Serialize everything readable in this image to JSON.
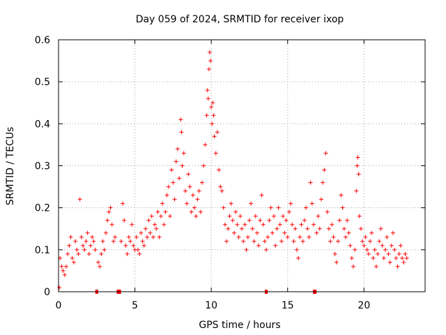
{
  "chart_data": {
    "type": "scatter",
    "title": "Day 059 of 2024, SRMTID for receiver ixop",
    "xlabel": "GPS time / hours",
    "ylabel": "SRMTID / TECUs",
    "xlim": [
      0,
      24
    ],
    "ylim": [
      0,
      0.6
    ],
    "xticks": [
      0,
      5,
      10,
      15,
      20
    ],
    "yticks": [
      0,
      0.1,
      0.2,
      0.3,
      0.4,
      0.5,
      0.6
    ],
    "grid": true,
    "marker": "plus",
    "color": "#ff0000",
    "series": [
      {
        "name": "SRMTID",
        "points": [
          [
            0.05,
            0.01
          ],
          [
            0.1,
            0.08
          ],
          [
            0.2,
            0.06
          ],
          [
            0.3,
            0.05
          ],
          [
            0.4,
            0.04
          ],
          [
            0.5,
            0.06
          ],
          [
            0.6,
            0.09
          ],
          [
            0.7,
            0.11
          ],
          [
            0.8,
            0.13
          ],
          [
            0.9,
            0.08
          ],
          [
            1.0,
            0.07
          ],
          [
            1.1,
            0.12
          ],
          [
            1.2,
            0.1
          ],
          [
            1.3,
            0.09
          ],
          [
            1.4,
            0.22
          ],
          [
            1.5,
            0.13
          ],
          [
            1.6,
            0.11
          ],
          [
            1.7,
            0.1
          ],
          [
            1.8,
            0.12
          ],
          [
            1.9,
            0.14
          ],
          [
            2.0,
            0.09
          ],
          [
            2.1,
            0.11
          ],
          [
            2.2,
            0.13
          ],
          [
            2.3,
            0.12
          ],
          [
            2.4,
            0.1
          ],
          [
            2.6,
            0.07
          ],
          [
            2.7,
            0.06
          ],
          [
            2.8,
            0.09
          ],
          [
            2.9,
            0.12
          ],
          [
            3.0,
            0.1
          ],
          [
            3.1,
            0.14
          ],
          [
            3.2,
            0.17
          ],
          [
            3.3,
            0.19
          ],
          [
            3.4,
            0.2
          ],
          [
            3.5,
            0.16
          ],
          [
            3.6,
            0.12
          ],
          [
            3.7,
            0.13
          ],
          [
            4.1,
            0.12
          ],
          [
            4.2,
            0.21
          ],
          [
            4.3,
            0.17
          ],
          [
            4.4,
            0.11
          ],
          [
            4.5,
            0.09
          ],
          [
            4.6,
            0.13
          ],
          [
            4.7,
            0.12
          ],
          [
            4.8,
            0.16
          ],
          [
            4.9,
            0.11
          ],
          [
            5.0,
            0.1
          ],
          [
            5.1,
            0.13
          ],
          [
            5.2,
            0.1
          ],
          [
            5.3,
            0.09
          ],
          [
            5.4,
            0.14
          ],
          [
            5.5,
            0.12
          ],
          [
            5.6,
            0.11
          ],
          [
            5.7,
            0.15
          ],
          [
            5.8,
            0.13
          ],
          [
            5.9,
            0.17
          ],
          [
            6.0,
            0.14
          ],
          [
            6.1,
            0.18
          ],
          [
            6.2,
            0.13
          ],
          [
            6.3,
            0.16
          ],
          [
            6.4,
            0.15
          ],
          [
            6.5,
            0.19
          ],
          [
            6.6,
            0.13
          ],
          [
            6.7,
            0.18
          ],
          [
            6.8,
            0.21
          ],
          [
            6.9,
            0.16
          ],
          [
            7.0,
            0.19
          ],
          [
            7.1,
            0.23
          ],
          [
            7.2,
            0.25
          ],
          [
            7.3,
            0.18
          ],
          [
            7.4,
            0.29
          ],
          [
            7.5,
            0.26
          ],
          [
            7.6,
            0.22
          ],
          [
            7.7,
            0.31
          ],
          [
            7.8,
            0.34
          ],
          [
            7.9,
            0.27
          ],
          [
            8.0,
            0.41
          ],
          [
            8.05,
            0.38
          ],
          [
            8.1,
            0.3
          ],
          [
            8.2,
            0.33
          ],
          [
            8.3,
            0.24
          ],
          [
            8.4,
            0.21
          ],
          [
            8.5,
            0.28
          ],
          [
            8.6,
            0.25
          ],
          [
            8.7,
            0.19
          ],
          [
            8.8,
            0.23
          ],
          [
            8.9,
            0.2
          ],
          [
            9.0,
            0.18
          ],
          [
            9.1,
            0.22
          ],
          [
            9.2,
            0.24
          ],
          [
            9.3,
            0.19
          ],
          [
            9.4,
            0.26
          ],
          [
            9.5,
            0.3
          ],
          [
            9.6,
            0.35
          ],
          [
            9.7,
            0.42
          ],
          [
            9.75,
            0.48
          ],
          [
            9.8,
            0.46
          ],
          [
            9.85,
            0.53
          ],
          [
            9.9,
            0.57
          ],
          [
            9.95,
            0.55
          ],
          [
            10.0,
            0.44
          ],
          [
            10.05,
            0.4
          ],
          [
            10.1,
            0.45
          ],
          [
            10.15,
            0.42
          ],
          [
            10.2,
            0.37
          ],
          [
            10.3,
            0.33
          ],
          [
            10.4,
            0.38
          ],
          [
            10.5,
            0.29
          ],
          [
            10.6,
            0.25
          ],
          [
            10.7,
            0.24
          ],
          [
            10.8,
            0.2
          ],
          [
            10.9,
            0.16
          ],
          [
            11.0,
            0.12
          ],
          [
            11.1,
            0.15
          ],
          [
            11.2,
            0.18
          ],
          [
            11.3,
            0.21
          ],
          [
            11.4,
            0.17
          ],
          [
            11.5,
            0.14
          ],
          [
            11.6,
            0.19
          ],
          [
            11.7,
            0.16
          ],
          [
            11.8,
            0.13
          ],
          [
            11.9,
            0.18
          ],
          [
            12.0,
            0.15
          ],
          [
            12.1,
            0.12
          ],
          [
            12.2,
            0.16
          ],
          [
            12.3,
            0.1
          ],
          [
            12.4,
            0.13
          ],
          [
            12.5,
            0.17
          ],
          [
            12.6,
            0.21
          ],
          [
            12.7,
            0.15
          ],
          [
            12.8,
            0.12
          ],
          [
            12.9,
            0.18
          ],
          [
            13.0,
            0.14
          ],
          [
            13.1,
            0.11
          ],
          [
            13.2,
            0.17
          ],
          [
            13.3,
            0.23
          ],
          [
            13.4,
            0.16
          ],
          [
            13.5,
            0.12
          ],
          [
            13.6,
            0.1
          ],
          [
            13.7,
            0.13
          ],
          [
            13.8,
            0.17
          ],
          [
            13.9,
            0.2
          ],
          [
            14.0,
            0.14
          ],
          [
            14.1,
            0.18
          ],
          [
            14.2,
            0.11
          ],
          [
            14.3,
            0.15
          ],
          [
            14.4,
            0.2
          ],
          [
            14.5,
            0.16
          ],
          [
            14.6,
            0.12
          ],
          [
            14.7,
            0.18
          ],
          [
            14.8,
            0.14
          ],
          [
            14.9,
            0.17
          ],
          [
            15.0,
            0.13
          ],
          [
            15.1,
            0.19
          ],
          [
            15.2,
            0.21
          ],
          [
            15.3,
            0.16
          ],
          [
            15.4,
            0.12
          ],
          [
            15.5,
            0.15
          ],
          [
            15.6,
            0.1
          ],
          [
            15.7,
            0.08
          ],
          [
            15.8,
            0.13
          ],
          [
            15.9,
            0.16
          ],
          [
            16.0,
            0.12
          ],
          [
            16.1,
            0.17
          ],
          [
            16.2,
            0.2
          ],
          [
            16.3,
            0.15
          ],
          [
            16.4,
            0.13
          ],
          [
            16.5,
            0.26
          ],
          [
            16.6,
            0.21
          ],
          [
            16.7,
            0.16
          ],
          [
            16.9,
            0.14
          ],
          [
            17.0,
            0.18
          ],
          [
            17.1,
            0.15
          ],
          [
            17.2,
            0.22
          ],
          [
            17.3,
            0.26
          ],
          [
            17.4,
            0.29
          ],
          [
            17.5,
            0.33
          ],
          [
            17.6,
            0.19
          ],
          [
            17.7,
            0.15
          ],
          [
            17.8,
            0.12
          ],
          [
            17.9,
            0.16
          ],
          [
            18.0,
            0.13
          ],
          [
            18.1,
            0.09
          ],
          [
            18.2,
            0.07
          ],
          [
            18.3,
            0.12
          ],
          [
            18.4,
            0.17
          ],
          [
            18.5,
            0.23
          ],
          [
            18.6,
            0.2
          ],
          [
            18.7,
            0.15
          ],
          [
            18.8,
            0.13
          ],
          [
            18.9,
            0.17
          ],
          [
            19.0,
            0.14
          ],
          [
            19.1,
            0.11
          ],
          [
            19.2,
            0.08
          ],
          [
            19.3,
            0.06
          ],
          [
            19.4,
            0.1
          ],
          [
            19.5,
            0.24
          ],
          [
            19.55,
            0.3
          ],
          [
            19.6,
            0.32
          ],
          [
            19.65,
            0.28
          ],
          [
            19.7,
            0.18
          ],
          [
            19.8,
            0.15
          ],
          [
            19.9,
            0.12
          ],
          [
            20.0,
            0.11
          ],
          [
            20.1,
            0.13
          ],
          [
            20.2,
            0.1
          ],
          [
            20.3,
            0.09
          ],
          [
            20.4,
            0.12
          ],
          [
            20.5,
            0.14
          ],
          [
            20.6,
            0.08
          ],
          [
            20.7,
            0.1
          ],
          [
            20.8,
            0.06
          ],
          [
            20.9,
            0.09
          ],
          [
            21.0,
            0.12
          ],
          [
            21.1,
            0.15
          ],
          [
            21.2,
            0.11
          ],
          [
            21.3,
            0.08
          ],
          [
            21.4,
            0.1
          ],
          [
            21.5,
            0.13
          ],
          [
            21.6,
            0.09
          ],
          [
            21.7,
            0.07
          ],
          [
            21.8,
            0.11
          ],
          [
            21.9,
            0.14
          ],
          [
            22.0,
            0.1
          ],
          [
            22.1,
            0.08
          ],
          [
            22.2,
            0.06
          ],
          [
            22.3,
            0.09
          ],
          [
            22.4,
            0.11
          ],
          [
            22.5,
            0.08
          ],
          [
            22.6,
            0.07
          ],
          [
            22.7,
            0.09
          ],
          [
            22.8,
            0.08
          ]
        ]
      }
    ],
    "gap_markers": [
      2.5,
      3.9,
      3.95,
      4.0,
      13.6,
      16.75,
      16.8
    ]
  }
}
